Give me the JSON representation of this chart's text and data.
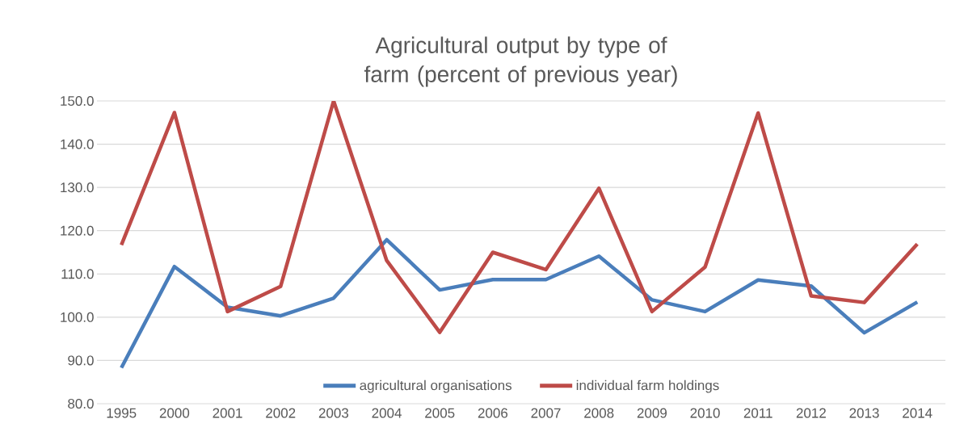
{
  "chart_data": {
    "type": "line",
    "title": "Agricultural output by type of farm (percent of previous year)",
    "categories": [
      "1995",
      "2000",
      "2001",
      "2002",
      "2003",
      "2004",
      "2005",
      "2006",
      "2007",
      "2008",
      "2009",
      "2010",
      "2011",
      "2012",
      "2013",
      "2014"
    ],
    "series": [
      {
        "name": "agricultural organisations",
        "color": "#4a7ebb",
        "values": [
          88.3,
          111.7,
          102.3,
          100.3,
          104.4,
          117.9,
          106.3,
          108.7,
          108.7,
          114.1,
          104.0,
          101.3,
          108.6,
          107.2,
          96.4,
          103.5
        ]
      },
      {
        "name": "individual farm holdings",
        "color": "#be4b48",
        "values": [
          116.7,
          147.3,
          101.3,
          107.1,
          150.0,
          113.1,
          96.5,
          115.0,
          111.0,
          129.8,
          101.3,
          111.6,
          147.2,
          104.9,
          103.4,
          116.9
        ]
      }
    ],
    "ylim": [
      80,
      150
    ],
    "yticks": [
      {
        "value": 80,
        "label": "80.0"
      },
      {
        "value": 90,
        "label": "90.0"
      },
      {
        "value": 100,
        "label": "100.0"
      },
      {
        "value": 110,
        "label": "110.0"
      },
      {
        "value": 120,
        "label": "120.0"
      },
      {
        "value": 130,
        "label": "130.0"
      },
      {
        "value": 140,
        "label": "140.0"
      },
      {
        "value": 150,
        "label": "150.0"
      }
    ],
    "grid": "y",
    "legend": "bottom"
  }
}
